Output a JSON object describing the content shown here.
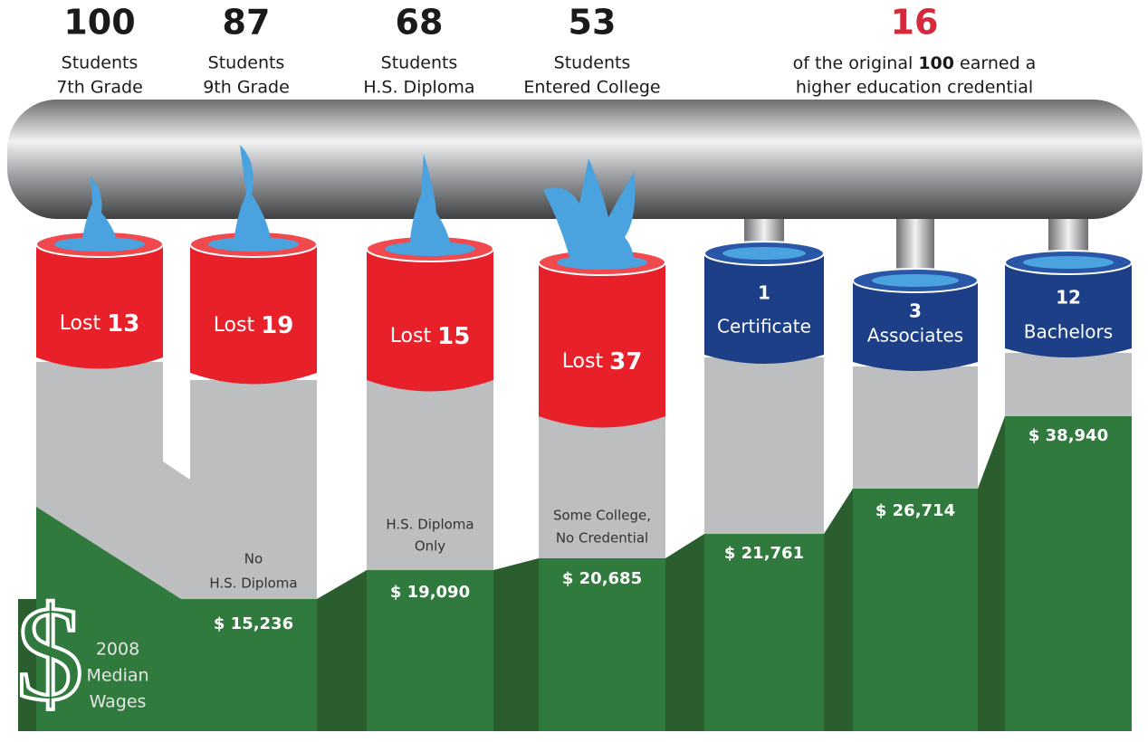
{
  "stages": [
    {
      "count": 100,
      "line1": "Students",
      "line2": "7th Grade"
    },
    {
      "count": 87,
      "line1": "Students",
      "line2": "9th Grade"
    },
    {
      "count": 68,
      "line1": "Students",
      "line2": "H.S. Diploma"
    },
    {
      "count": 53,
      "line1": "Students",
      "line2": "Entered College"
    }
  ],
  "summary": {
    "count": 16,
    "before": "of the original",
    "highlight": 100,
    "after": "earned a",
    "line2": "higher education credential"
  },
  "lost": [
    {
      "label": "Lost",
      "value": 13
    },
    {
      "label": "Lost",
      "value": 19
    },
    {
      "label": "Lost",
      "value": 15
    },
    {
      "label": "Lost",
      "value": 37
    }
  ],
  "credentials": [
    {
      "value": 1,
      "label": "Certificate"
    },
    {
      "value": 3,
      "label": "Associates"
    },
    {
      "value": 12,
      "label": "Bachelors"
    }
  ],
  "outcomes": [
    {
      "line1": "No",
      "line2": "H.S. Diploma"
    },
    {
      "line1": "H.S. Diploma",
      "line2": "Only"
    },
    {
      "line1": "Some College,",
      "line2": "No Credential"
    }
  ],
  "wages": [
    "$ 15,236",
    "$ 19,090",
    "$ 20,685",
    "$ 21,761",
    "$ 26,714",
    "$ 38,940"
  ],
  "wage_title": {
    "symbol": "$",
    "lines": [
      "2008",
      "Median",
      "Wages"
    ]
  }
}
